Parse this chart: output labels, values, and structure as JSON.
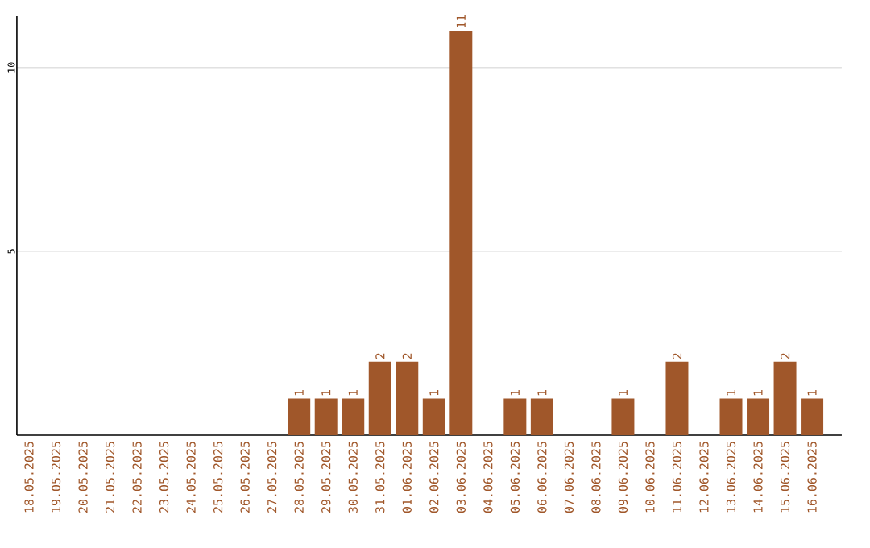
{
  "chart_data": {
    "type": "bar",
    "categories": [
      "18.05.2025",
      "19.05.2025",
      "20.05.2025",
      "21.05.2025",
      "22.05.2025",
      "23.05.2025",
      "24.05.2025",
      "25.05.2025",
      "26.05.2025",
      "27.05.2025",
      "28.05.2025",
      "29.05.2025",
      "30.05.2025",
      "31.05.2025",
      "01.06.2025",
      "02.06.2025",
      "03.06.2025",
      "04.06.2025",
      "05.06.2025",
      "06.06.2025",
      "07.06.2025",
      "08.06.2025",
      "09.06.2025",
      "10.06.2025",
      "11.06.2025",
      "12.06.2025",
      "13.06.2025",
      "14.06.2025",
      "15.06.2025",
      "16.06.2025"
    ],
    "values": [
      0,
      0,
      0,
      0,
      0,
      0,
      0,
      0,
      0,
      0,
      1,
      1,
      1,
      2,
      2,
      1,
      11,
      0,
      1,
      1,
      0,
      0,
      1,
      0,
      2,
      0,
      1,
      1,
      2,
      1
    ],
    "value_labels": [
      null,
      null,
      null,
      null,
      null,
      null,
      null,
      null,
      null,
      null,
      "1",
      "1",
      "1",
      "2",
      "2",
      "1",
      "11",
      null,
      "1",
      "1",
      null,
      null,
      "1",
      null,
      "2",
      null,
      "1",
      "1",
      "2",
      "1"
    ],
    "color": "#a0572a",
    "ylim": [
      0,
      11.4
    ],
    "yticks": [
      5,
      10
    ],
    "grid": "y"
  }
}
